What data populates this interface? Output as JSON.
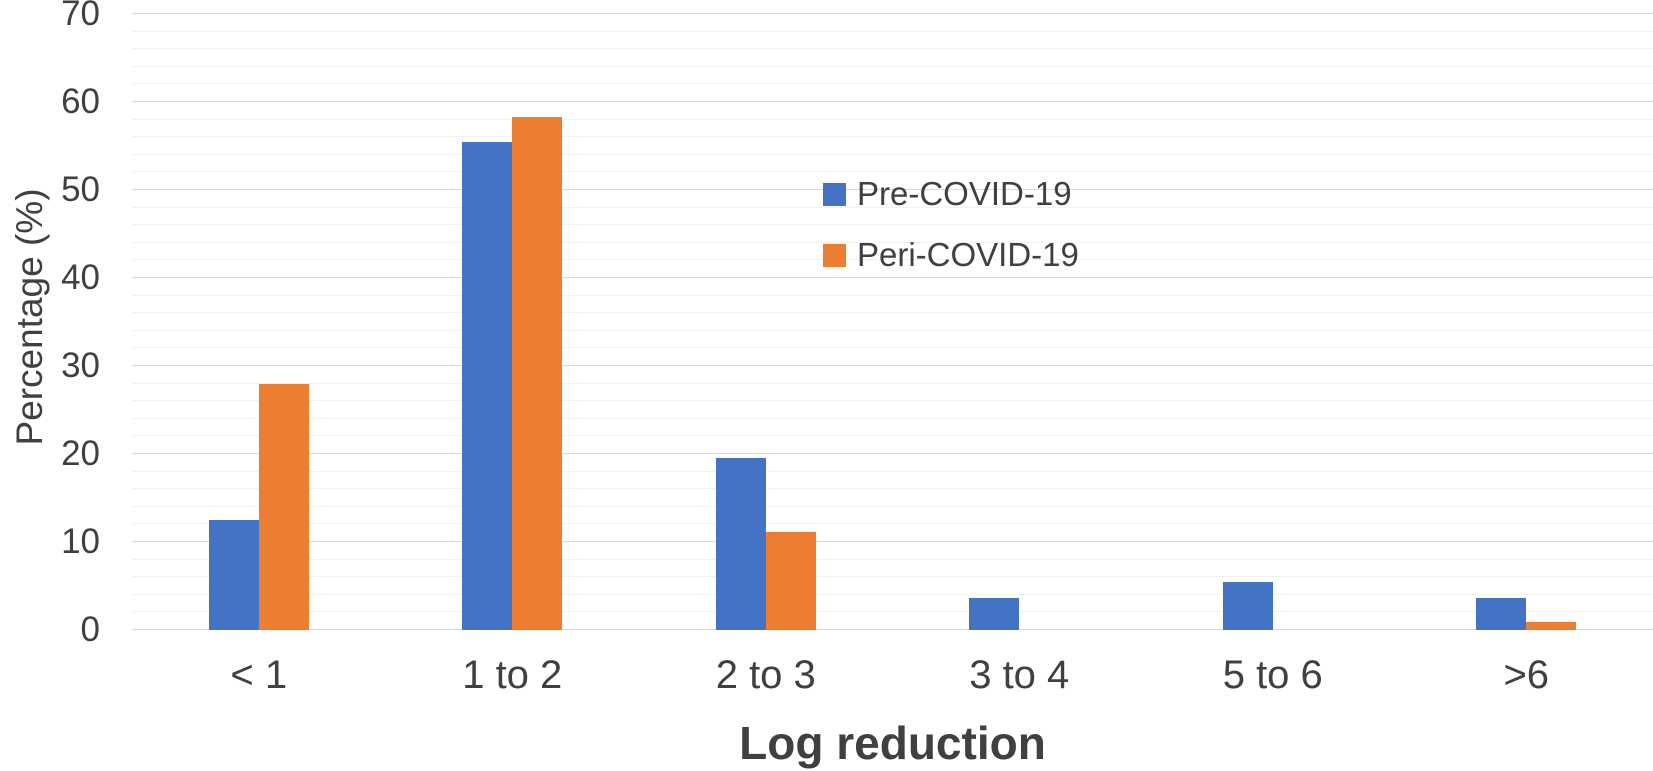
{
  "chart_data": {
    "type": "bar",
    "title": "",
    "xlabel": "Log reduction",
    "ylabel": "Percentage (%)",
    "categories": [
      "< 1",
      "1 to 2",
      "2 to 3",
      "3 to 4",
      "5 to 6",
      ">6"
    ],
    "series": [
      {
        "name": "Pre-COVID-19",
        "color": "#4472C4",
        "values": [
          12.5,
          55.4,
          19.6,
          3.6,
          5.4,
          3.6
        ]
      },
      {
        "name": "Peri-COVID-19",
        "color": "#ED7D31",
        "values": [
          27.9,
          58.3,
          11.1,
          0,
          0,
          0.9
        ]
      }
    ],
    "ylim": [
      0,
      70
    ],
    "y_major_tick_step": 10,
    "y_minor_tick_step": 2,
    "y_tick_labels": [
      "0",
      "10",
      "20",
      "30",
      "40",
      "50",
      "60",
      "70"
    ],
    "grid": true,
    "legend_position": "inside-upper-middle",
    "colors": {
      "major_gridline": "#D9D9D9",
      "minor_gridline": "#F2F2F2",
      "text": "#404040",
      "background": "#FFFFFF"
    }
  }
}
